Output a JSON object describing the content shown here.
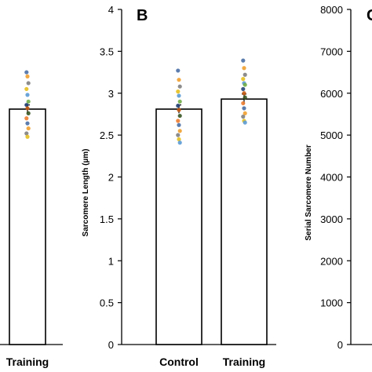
{
  "chart_data": [
    {
      "panel": "",
      "type": "bar",
      "categories": [
        "Training"
      ],
      "values": [
        2.81
      ],
      "errors": [
        0.05
      ],
      "ylim": [
        0,
        4
      ],
      "ylabel": "",
      "points": [
        [
          3.25,
          3.2,
          3.12,
          3.05,
          2.98,
          2.9,
          2.86,
          2.82,
          2.76,
          2.7,
          2.64,
          2.58,
          2.52,
          2.48
        ]
      ]
    },
    {
      "panel": "B",
      "type": "bar",
      "categories": [
        "Control",
        "Training"
      ],
      "values": [
        2.81,
        2.93
      ],
      "errors": [
        0.05,
        0.06
      ],
      "ylim": [
        0,
        4
      ],
      "yticks": [
        "0",
        "0.5",
        "1",
        "1.5",
        "2",
        "2.5",
        "3",
        "3.5",
        "4"
      ],
      "ylabel": "Sarcomere Length (µm)",
      "points": [
        [
          3.27,
          3.16,
          3.08,
          3.02,
          2.97,
          2.9,
          2.85,
          2.8,
          2.73,
          2.67,
          2.62,
          2.55,
          2.5,
          2.45,
          2.41
        ],
        [
          3.39,
          3.3,
          3.22,
          3.17,
          3.12,
          3.1,
          3.05,
          3.0,
          2.95,
          2.88,
          2.82,
          2.76,
          2.72,
          2.67,
          2.65
        ]
      ]
    },
    {
      "panel": "C",
      "type": "bar",
      "categories": [],
      "values": [],
      "ylim": [
        0,
        8000
      ],
      "yticks": [
        "0",
        "1000",
        "2000",
        "3000",
        "4000",
        "5000",
        "6000",
        "7000",
        "8000"
      ],
      "ylabel": "Serial Sarcomere Number"
    }
  ],
  "point_colors": [
    "#4a6fa5",
    "#f0a030",
    "#7f7f7f",
    "#e6c020",
    "#5b9bd5",
    "#70ad47",
    "#264478",
    "#c55a11",
    "#375623",
    "#ed7d31"
  ],
  "bar_color": "#ffffff",
  "bar_edge": "#000000"
}
